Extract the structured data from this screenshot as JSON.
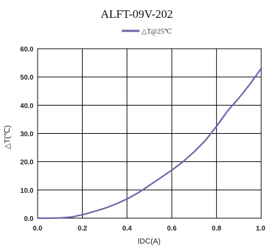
{
  "chart_data": {
    "type": "line",
    "title": "ALFT-09V-202",
    "xlabel": "IDC(A)",
    "ylabel": "△T(℃)",
    "xlim": [
      0.0,
      1.0
    ],
    "ylim": [
      0.0,
      60.0
    ],
    "x_ticks": [
      "0.0",
      "0.2",
      "0.4",
      "0.6",
      "0.8",
      "1.0"
    ],
    "y_ticks": [
      "0.0",
      "10.0",
      "20.0",
      "30.0",
      "40.0",
      "50.0",
      "60.0"
    ],
    "grid": true,
    "legend_position": "top-center",
    "series": [
      {
        "name": "△T@25℃",
        "color": "#6a64a8",
        "x": [
          0.0,
          0.05,
          0.1,
          0.15,
          0.2,
          0.25,
          0.3,
          0.35,
          0.4,
          0.45,
          0.5,
          0.55,
          0.6,
          0.65,
          0.7,
          0.75,
          0.8,
          0.85,
          0.9,
          0.95,
          1.0
        ],
        "y": [
          0.0,
          0.0,
          0.1,
          0.4,
          1.2,
          2.3,
          3.5,
          5.0,
          6.8,
          9.0,
          11.6,
          14.3,
          17.0,
          20.0,
          23.5,
          27.5,
          32.5,
          38.0,
          42.5,
          47.5,
          53.0
        ]
      }
    ]
  }
}
